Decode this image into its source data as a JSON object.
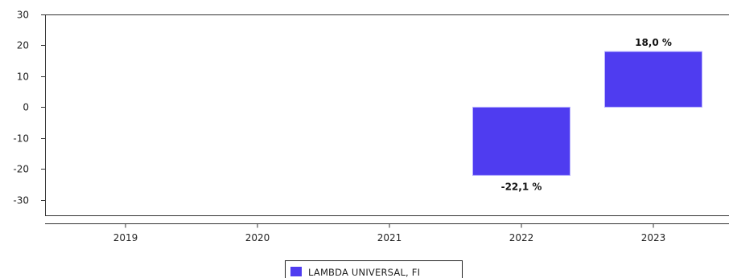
{
  "chart_data": {
    "type": "bar",
    "title": "",
    "xlabel": "",
    "ylabel": "",
    "categories": [
      "2019",
      "2020",
      "2021",
      "2022",
      "2023"
    ],
    "series": [
      {
        "name": "LAMBDA UNIVERSAL, FI",
        "color": "#4f3cf0",
        "values": [
          null,
          null,
          null,
          -22.1,
          18.0
        ],
        "labels": [
          "",
          "",
          "",
          "-22,1 %",
          "18,0 %"
        ]
      }
    ],
    "ylim": [
      -35,
      30
    ],
    "yticks": [
      30,
      20,
      10,
      0,
      -10,
      -20,
      -30
    ],
    "grid": false,
    "legend": "bottom-center"
  }
}
